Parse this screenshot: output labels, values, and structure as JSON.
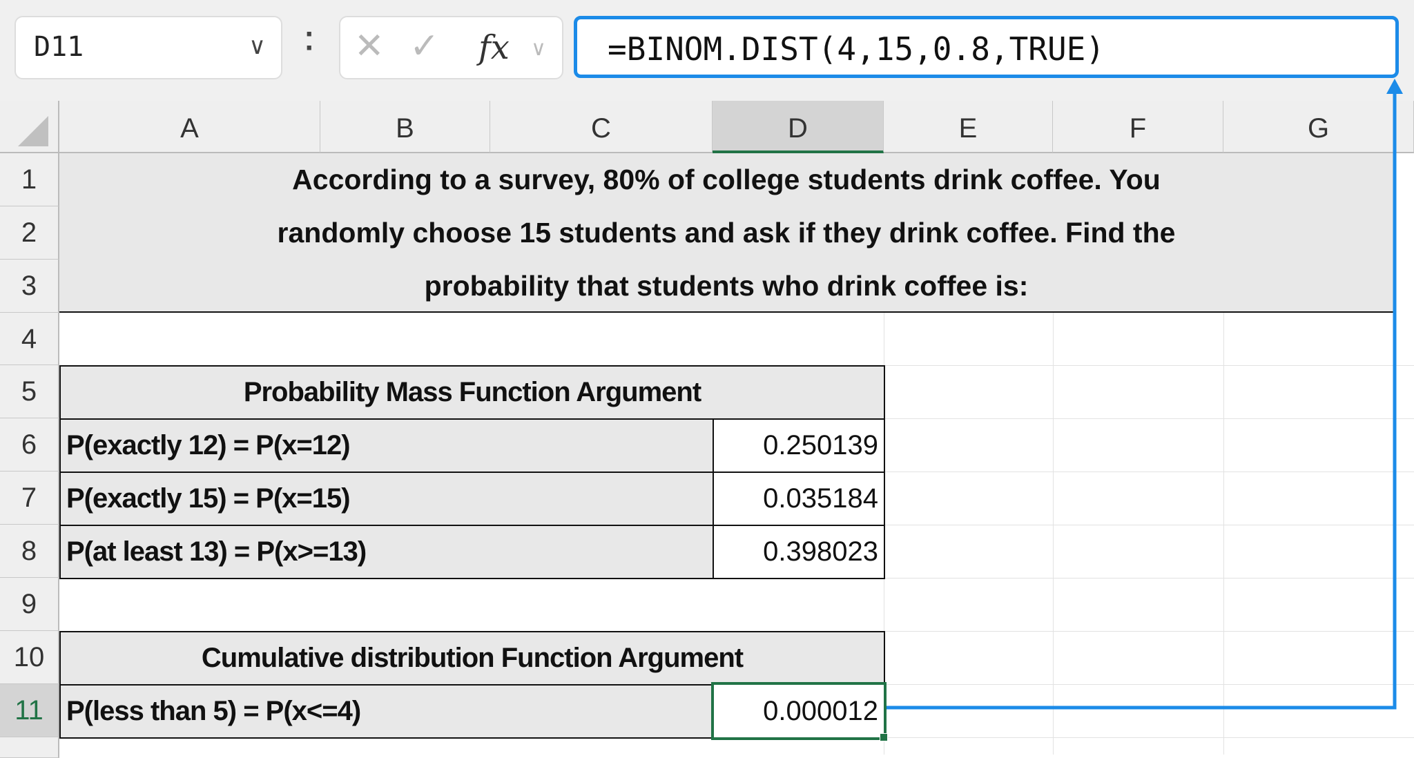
{
  "formula_bar": {
    "name_box": "D11",
    "formula": "=BINOM.DIST(4,15,0.8,TRUE)",
    "icons": [
      "chevron-down-icon",
      "more-icon",
      "cancel-icon",
      "enter-check-icon",
      "fx-icon"
    ]
  },
  "columns": [
    "A",
    "B",
    "C",
    "D",
    "E",
    "F",
    "G"
  ],
  "rows": [
    "1",
    "2",
    "3",
    "4",
    "5",
    "6",
    "7",
    "8",
    "9",
    "10",
    "11"
  ],
  "selected_cell": "D11",
  "title_lines": [
    "According to a survey, 80% of college students drink coffee. You",
    "randomly choose 15 students and ask if they drink coffee. Find the",
    "probability that students who drink coffee is:"
  ],
  "pmf_table": {
    "header": "Probability Mass Function  Argument",
    "rows": [
      {
        "label": "P(exactly 12) = P(x=12)",
        "value": "0.250139"
      },
      {
        "label": "P(exactly 15) = P(x=15)",
        "value": "0.035184"
      },
      {
        "label": "P(at least 13) = P(x>=13)",
        "value": "0.398023"
      }
    ]
  },
  "cdf_table": {
    "header": "Cumulative distribution Function  Argument",
    "rows": [
      {
        "label": "P(less than 5) = P(x<=4)",
        "value": "0.000012"
      }
    ]
  },
  "colors": {
    "accent_blue": "#1c8be8",
    "selection_green": "#217346",
    "header_fill": "#e8e8e8"
  }
}
